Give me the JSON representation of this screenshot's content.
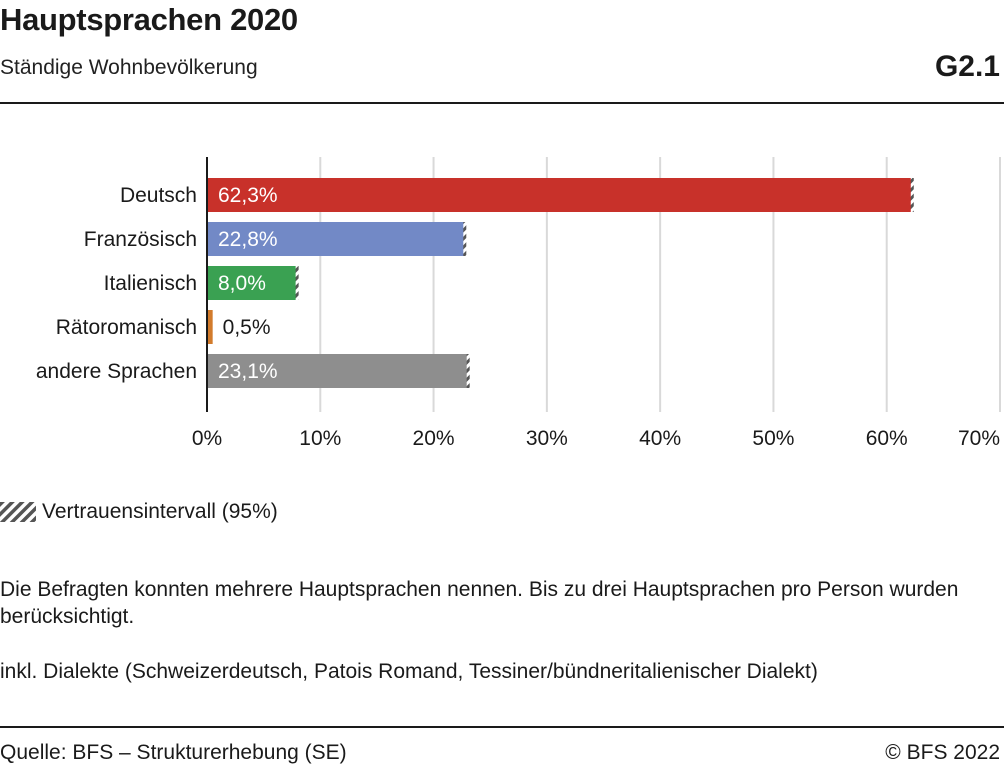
{
  "header": {
    "title": "Hauptsprachen 2020",
    "subtitle": "Ständige Wohnbevölkerung",
    "code": "G2.1"
  },
  "legend": {
    "ci_label": "Vertrauensintervall (95%)"
  },
  "notes": {
    "note1": "Die Befragten konnten mehrere Hauptsprachen nennen. Bis zu drei Hauptsprachen pro Person wurden berücksichtigt.",
    "note2": "inkl. Dialekte (Schweizerdeutsch, Patois Romand, Tessiner/bündneritalienischer Dialekt)"
  },
  "footer": {
    "source": "Quelle: BFS – Strukturerhebung (SE)",
    "copyright": "© BFS 2022"
  },
  "chart_data": {
    "type": "bar",
    "orientation": "horizontal",
    "categories": [
      "Deutsch",
      "Französisch",
      "Italienisch",
      "Rätoromanisch",
      "andere Sprachen"
    ],
    "values": [
      62.3,
      22.8,
      8.0,
      0.5,
      23.1
    ],
    "value_labels": [
      "62,3%",
      "22,8%",
      "8,0%",
      "0,5%",
      "23,1%"
    ],
    "colors": [
      "#c8312a",
      "#7289c6",
      "#3aa152",
      "#d27b2c",
      "#8e8e8e"
    ],
    "xlim": [
      0,
      70
    ],
    "xticks": [
      0,
      10,
      20,
      30,
      40,
      50,
      60,
      70
    ],
    "xtick_labels": [
      "0%",
      "10%",
      "20%",
      "30%",
      "40%",
      "50%",
      "60%",
      "70%"
    ],
    "grid": true,
    "confidence_interval": "95%",
    "legend_position": "bottom-left"
  }
}
